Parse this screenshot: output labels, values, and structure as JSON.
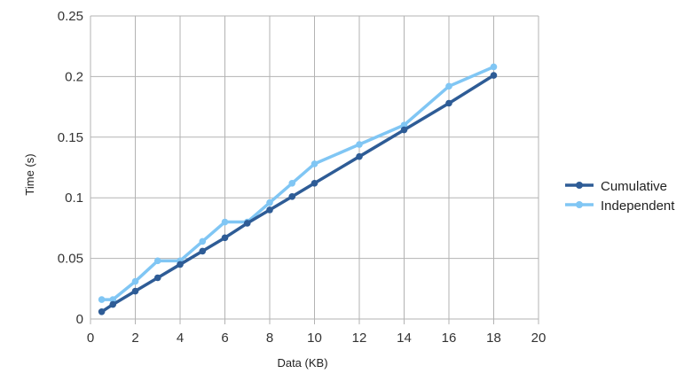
{
  "chart_data": {
    "type": "line",
    "title": "",
    "xlabel": "Data (KB)",
    "ylabel": "Time (s)",
    "xlim": [
      0,
      20
    ],
    "ylim": [
      0,
      0.25
    ],
    "x_ticks": [
      "0",
      "2",
      "4",
      "6",
      "8",
      "10",
      "12",
      "14",
      "16",
      "18",
      "20"
    ],
    "y_ticks": [
      "0",
      "0.05",
      "0.1",
      "0.15",
      "0.2",
      "0.25"
    ],
    "grid": true,
    "legend_position": "right",
    "series": [
      {
        "name": "Cumulative",
        "color": "#2e5c96",
        "x": [
          0.5,
          1,
          2,
          3,
          4,
          5,
          6,
          7,
          8,
          9,
          10,
          12,
          14,
          16,
          18
        ],
        "y": [
          0.006,
          0.012,
          0.023,
          0.034,
          0.045,
          0.056,
          0.067,
          0.079,
          0.09,
          0.101,
          0.112,
          0.134,
          0.156,
          0.178,
          0.201
        ]
      },
      {
        "name": "Independent",
        "color": "#80c6f4",
        "x": [
          0.5,
          1,
          2,
          3,
          4,
          5,
          6,
          7,
          8,
          9,
          10,
          12,
          14,
          16,
          18
        ],
        "y": [
          0.016,
          0.016,
          0.031,
          0.048,
          0.048,
          0.064,
          0.08,
          0.08,
          0.096,
          0.112,
          0.128,
          0.144,
          0.16,
          0.192,
          0.208
        ]
      }
    ]
  }
}
